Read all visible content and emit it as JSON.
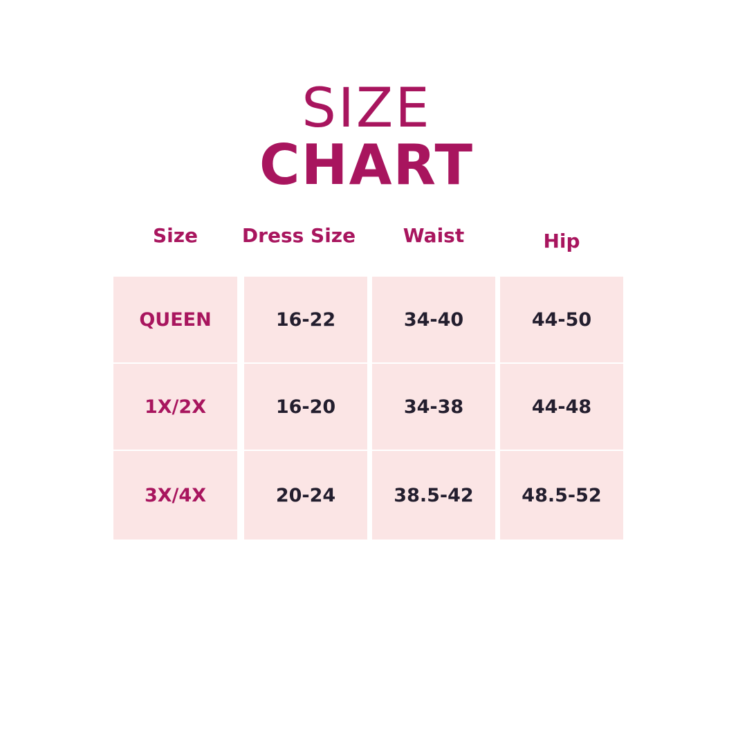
{
  "title": {
    "line1": "SIZE",
    "line2": "CHART"
  },
  "colors": {
    "accent": "#a8155e",
    "cell_bg": "#fbe5e5",
    "value_text": "#231e2e"
  },
  "chart_data": {
    "type": "table",
    "columns": [
      "Size",
      "Dress Size",
      "Waist",
      "Hip"
    ],
    "rows": [
      [
        "QUEEN",
        "16-22",
        "34-40",
        "44-50"
      ],
      [
        "1X/2X",
        "16-20",
        "34-38",
        "44-48"
      ],
      [
        "3X/4X",
        "20-24",
        "38.5-42",
        "48.5-52"
      ]
    ]
  }
}
